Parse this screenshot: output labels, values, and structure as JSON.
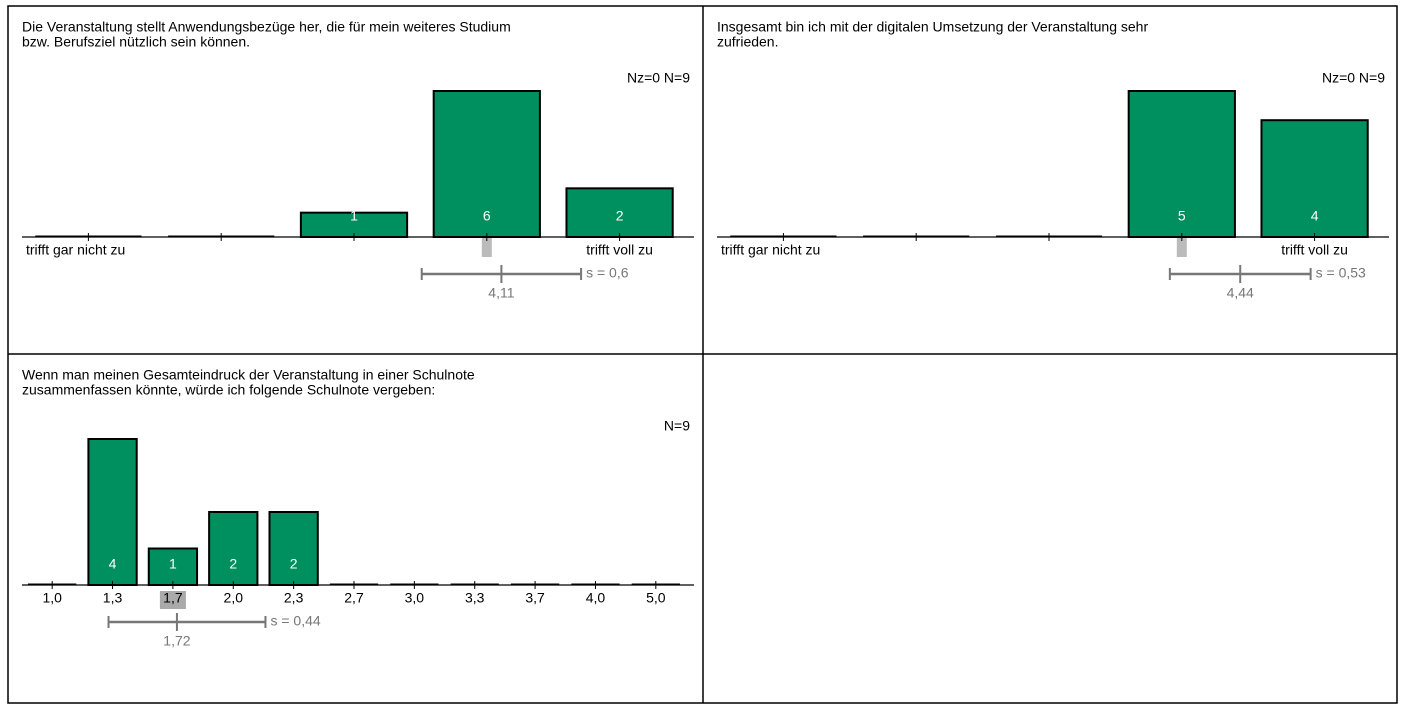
{
  "chart_data": [
    {
      "type": "bar",
      "title": [
        "Die Veranstaltung stellt Anwendungsbezüge her, die für mein weiteres Studium",
        "bzw. Berufsziel nützlich sein können."
      ],
      "counts_label": "Nz=0  N=9",
      "categories": [
        "trifft gar nicht zu",
        null,
        null,
        null,
        "trifft voll zu"
      ],
      "values": [
        0,
        0,
        1,
        6,
        2
      ],
      "color": "#009060",
      "mean": 4.11,
      "mean_label": "4,11",
      "sd": 0.6,
      "sd_label": "s = 0,6",
      "median": 4
    },
    {
      "type": "bar",
      "title": [
        "Insgesamt bin ich mit der digitalen Umsetzung der Veranstaltung sehr",
        "zufrieden."
      ],
      "counts_label": "Nz=0  N=9",
      "categories": [
        "trifft gar nicht zu",
        null,
        null,
        null,
        "trifft voll zu"
      ],
      "values": [
        0,
        0,
        0,
        5,
        4
      ],
      "color": "#009060",
      "mean": 4.44,
      "mean_label": "4,44",
      "sd": 0.53,
      "sd_label": "s = 0,53",
      "median": 4
    },
    {
      "type": "bar",
      "title": [
        "Wenn man meinen Gesamteindruck der Veranstaltung in einer Schulnote",
        "zusammenfassen könnte, würde ich folgende Schulnote vergeben:"
      ],
      "counts_label": "N=9",
      "categories": [
        "1,0",
        "1,3",
        "1,7",
        "2,0",
        "2,3",
        "2,7",
        "3,0",
        "3,3",
        "3,7",
        "4,0",
        "5,0"
      ],
      "values": [
        0,
        4,
        1,
        2,
        2,
        0,
        0,
        0,
        0,
        0,
        0
      ],
      "color": "#009060",
      "mean": 1.72,
      "mean_label": "1,72",
      "sd": 0.44,
      "sd_label": "s = 0,44",
      "median": 1.7
    }
  ]
}
